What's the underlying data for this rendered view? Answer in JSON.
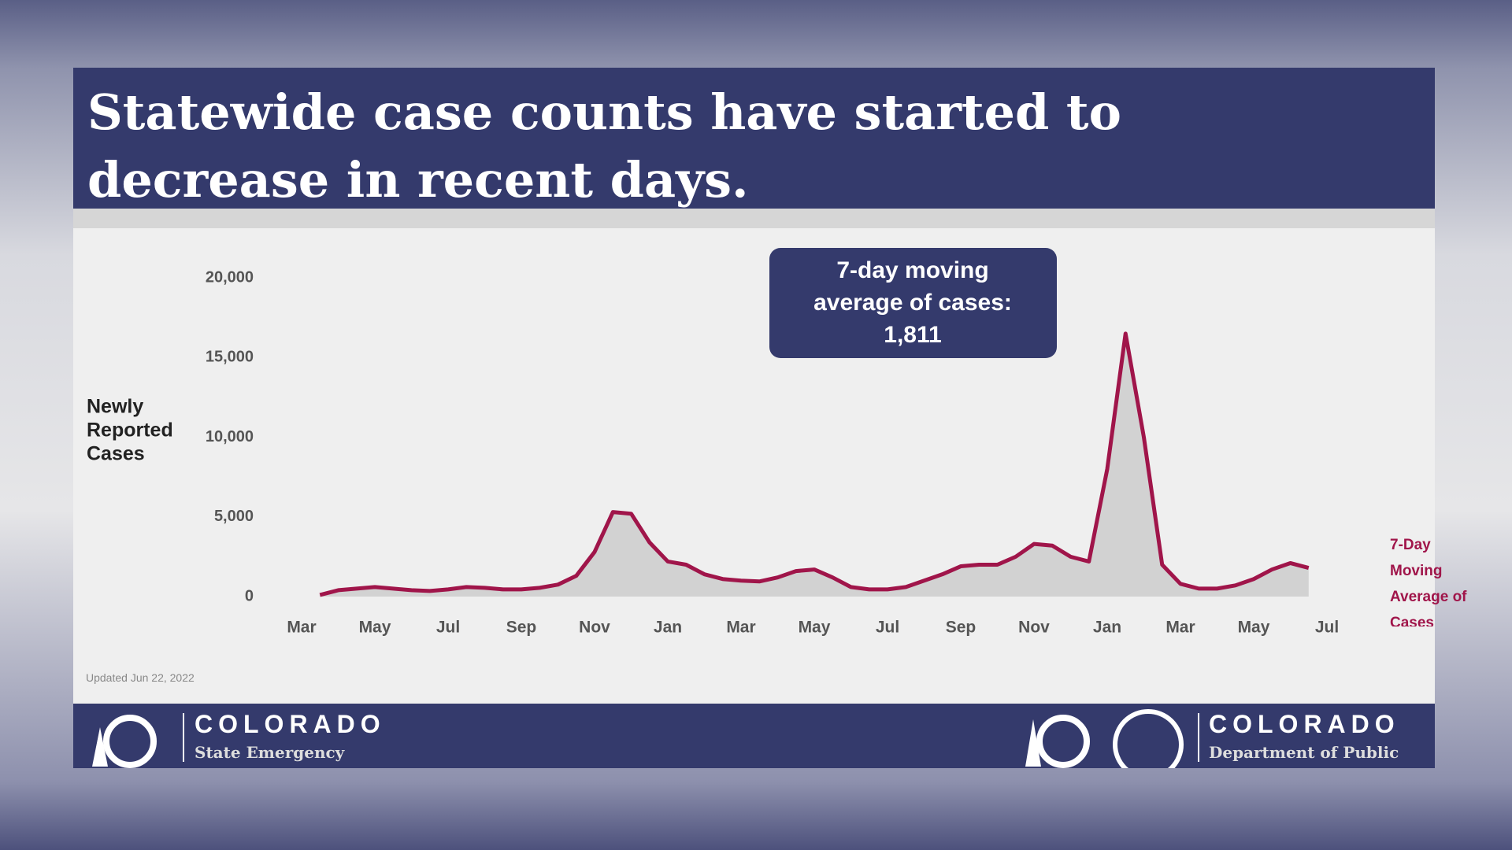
{
  "slide": {
    "title_lines": [
      "Statewide case counts have started to",
      "decrease in recent days."
    ],
    "updated": "Updated Jun 22, 2022",
    "footer_left": {
      "name": "COLORADO",
      "sub": "State Emergency"
    },
    "footer_right": {
      "name": "COLORADO",
      "sub": "Department of Public"
    }
  },
  "chart_data": {
    "type": "area",
    "y_label_lines": [
      "Newly",
      "Reported",
      "Cases"
    ],
    "annotation_lines": [
      "7-day moving",
      "average of cases:",
      "1,811"
    ],
    "categories": [
      "Mar",
      null,
      null,
      null,
      "May",
      null,
      null,
      null,
      "Jul",
      null,
      null,
      null,
      "Sep",
      null,
      null,
      null,
      "Nov",
      null,
      null,
      null,
      "Jan",
      null,
      null,
      null,
      "Mar",
      null,
      null,
      null,
      "May",
      null,
      null,
      null,
      "Jul",
      null,
      null,
      null,
      "Sep",
      null,
      null,
      null,
      "Nov",
      null,
      null,
      null,
      "Jan",
      null,
      null,
      null,
      "Mar",
      null,
      null,
      null,
      "May",
      null,
      null,
      null,
      "Jul"
    ],
    "series": [
      {
        "name": "7-Day Moving Average of Cases",
        "color": "#a0154a",
        "fill": "#d2d2d2",
        "values": [
          null,
          100,
          400,
          500,
          600,
          500,
          400,
          350,
          450,
          600,
          550,
          450,
          450,
          550,
          750,
          1300,
          2800,
          5300,
          5200,
          3400,
          2200,
          2000,
          1400,
          1100,
          1000,
          950,
          1200,
          1600,
          1700,
          1200,
          600,
          450,
          450,
          600,
          1000,
          1400,
          1900,
          2000,
          2000,
          2500,
          3300,
          3200,
          2500,
          2200,
          8000,
          16500,
          10000,
          2000,
          800,
          500,
          500,
          700,
          1100,
          1700,
          2100,
          1800,
          null
        ]
      }
    ],
    "ylim": [
      0,
      20000
    ],
    "yticks": [
      0,
      {
        "value": 5000,
        "label": "5,000"
      },
      {
        "value": 10000,
        "label": "10,000"
      },
      {
        "value": 15000,
        "label": "15,000"
      },
      {
        "value": 20000,
        "label": "20,000"
      }
    ],
    "grid": false
  }
}
